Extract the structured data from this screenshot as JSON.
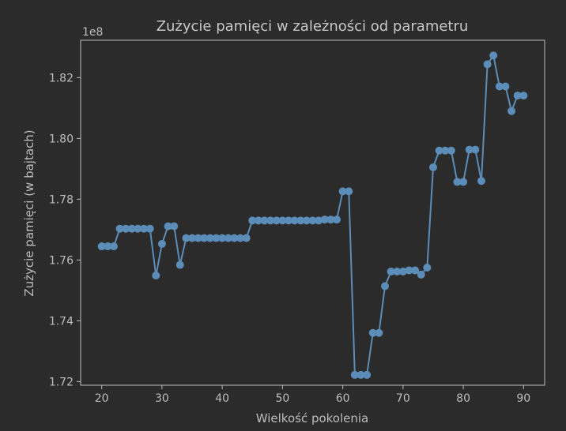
{
  "chart_data": {
    "type": "line",
    "title": "Zużycie pamięci w zależności od parametru",
    "xlabel": "Wielkość pokolenia",
    "ylabel": "Zużycie pamięci (w bajtach)",
    "y_offset_label": "1e8",
    "xlim": [
      16.5,
      93.5
    ],
    "ylim": [
      1.7188,
      1.8323
    ],
    "x_ticks": [
      20,
      30,
      40,
      50,
      60,
      70,
      80,
      90
    ],
    "y_ticks": [
      1.72,
      1.74,
      1.76,
      1.78,
      1.8,
      1.82
    ],
    "y_tick_labels": [
      "1.72",
      "1.74",
      "1.76",
      "1.78",
      "1.80",
      "1.82"
    ],
    "grid": false,
    "series": [
      {
        "color": "#5b8db8",
        "marker": "circle",
        "x": [
          20,
          21,
          22,
          23,
          24,
          25,
          26,
          27,
          28,
          29,
          30,
          31,
          32,
          33,
          34,
          35,
          36,
          37,
          38,
          39,
          40,
          41,
          42,
          43,
          44,
          45,
          46,
          47,
          48,
          49,
          50,
          51,
          52,
          53,
          54,
          55,
          56,
          57,
          58,
          59,
          60,
          61,
          62,
          63,
          64,
          65,
          66,
          67,
          68,
          69,
          70,
          71,
          72,
          73,
          74,
          75,
          76,
          77,
          78,
          79,
          80,
          81,
          82,
          83,
          84,
          85,
          86,
          87,
          88,
          89,
          90
        ],
        "y": [
          1.7645,
          1.7645,
          1.7645,
          1.7703,
          1.7703,
          1.7703,
          1.7703,
          1.7703,
          1.7703,
          1.7549,
          1.7653,
          1.7711,
          1.7711,
          1.7584,
          1.7672,
          1.7672,
          1.7672,
          1.7672,
          1.7672,
          1.7672,
          1.7672,
          1.7672,
          1.7672,
          1.7672,
          1.7672,
          1.773,
          1.773,
          1.773,
          1.773,
          1.773,
          1.773,
          1.773,
          1.773,
          1.773,
          1.773,
          1.773,
          1.773,
          1.7733,
          1.7733,
          1.7733,
          1.7826,
          1.7826,
          1.7222,
          1.7222,
          1.7222,
          1.736,
          1.736,
          1.7514,
          1.7562,
          1.7562,
          1.7562,
          1.7566,
          1.7566,
          1.7552,
          1.7575,
          1.7905,
          1.796,
          1.796,
          1.796,
          1.7857,
          1.7857,
          1.7963,
          1.7963,
          1.786,
          1.8244,
          1.8273,
          1.8171,
          1.8171,
          1.809,
          1.8141,
          1.8141
        ]
      }
    ]
  }
}
